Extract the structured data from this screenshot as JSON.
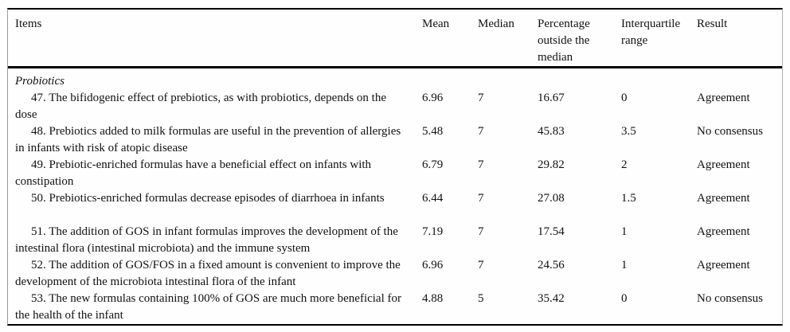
{
  "table": {
    "headers": [
      "Items",
      "Mean",
      "Median",
      "Percentage outside the median",
      "Interquartile range",
      "Result"
    ],
    "section": "Probiotics",
    "rows": [
      {
        "item": "47. The bifidogenic effect of prebiotics, as with probiotics, depends on the dose",
        "mean": "6.96",
        "median": "7",
        "pct_outside_median": "16.67",
        "interquartile_range": "0",
        "result": "Agreement"
      },
      {
        "item": "48. Prebiotics added to milk formulas are useful in the prevention of allergies in infants with risk of atopic disease",
        "mean": "5.48",
        "median": "7",
        "pct_outside_median": "45.83",
        "interquartile_range": "3.5",
        "result": "No consensus"
      },
      {
        "item": "49. Prebiotic-enriched formulas have a beneficial effect on infants with constipation",
        "mean": "6.79",
        "median": "7",
        "pct_outside_median": "29.82",
        "interquartile_range": "2",
        "result": "Agreement"
      },
      {
        "item": "50. Prebiotics-enriched formulas decrease episodes of diarrhoea in infants",
        "mean": "6.44",
        "median": "7",
        "pct_outside_median": "27.08",
        "interquartile_range": "1.5",
        "result": "Agreement"
      },
      {
        "item": "51. The addition of GOS in infant formulas improves the development of the intestinal flora (intestinal microbiota) and the immune system",
        "mean": "7.19",
        "median": "7",
        "pct_outside_median": "17.54",
        "interquartile_range": "1",
        "result": "Agreement"
      },
      {
        "item": "52. The addition of GOS/FOS in a fixed amount is convenient to improve the development of the microbiota intestinal flora of the infant",
        "mean": "6.96",
        "median": "7",
        "pct_outside_median": "24.56",
        "interquartile_range": "1",
        "result": "Agreement"
      },
      {
        "item": "53. The new formulas containing 100% of GOS are much more beneficial for the health of the infant",
        "mean": "4.88",
        "median": "5",
        "pct_outside_median": "35.42",
        "interquartile_range": "0",
        "result": "No consensus"
      }
    ]
  },
  "colors": {
    "text": "#111111",
    "rule": "#000000",
    "frame_side": "#9a9a9a",
    "background": "#fefefe"
  }
}
